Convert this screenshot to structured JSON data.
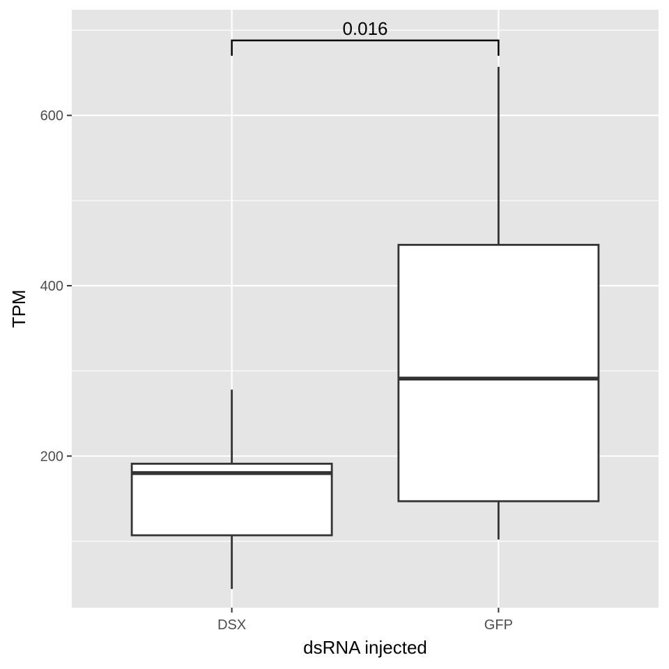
{
  "chart_data": {
    "type": "box",
    "xlabel": "dsRNA injected",
    "ylabel": "TPM",
    "ylim": [
      22,
      724
    ],
    "yticks": [
      200,
      400,
      600
    ],
    "grid": true,
    "categories": [
      "DSX",
      "GFP"
    ],
    "boxes": [
      {
        "category": "DSX",
        "whisker_low": 44,
        "q1": 107,
        "median": 180,
        "q3": 191,
        "whisker_high": 278
      },
      {
        "category": "GFP",
        "whisker_low": 102,
        "q1": 147,
        "median": 291,
        "q3": 448,
        "whisker_high": 657
      }
    ],
    "annotation": {
      "from": "DSX",
      "to": "GFP",
      "label": "0.016",
      "y": 688
    },
    "colors": {
      "panel_bg": "#e5e5e5",
      "grid": "#ffffff",
      "box_fill": "#ffffff",
      "box_stroke": "#333333",
      "tick_text": "#4d4d4d"
    }
  }
}
